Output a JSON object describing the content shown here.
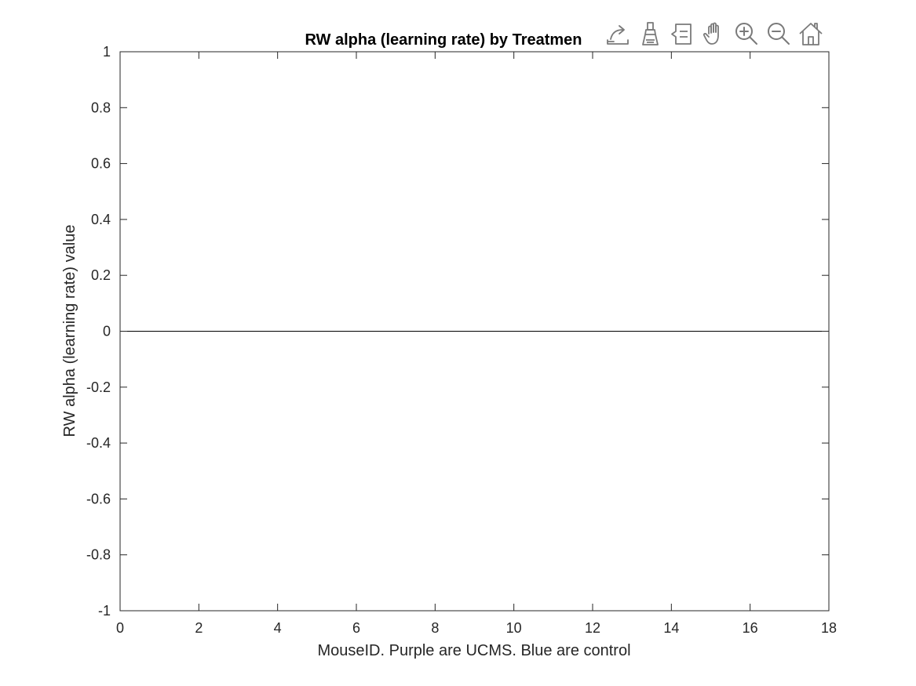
{
  "figure": {
    "toolbar": {
      "icons": [
        "export-icon",
        "brush-icon",
        "legend-icon",
        "pan-hand-icon",
        "zoom-in-icon",
        "zoom-out-icon",
        "home-icon"
      ]
    },
    "colors": {
      "axis": "#262626",
      "data_line": "#000000",
      "toolbar_icon": "#7a7a7a",
      "background": "#ffffff"
    }
  },
  "chart_data": {
    "type": "line",
    "title": "RW alpha (learning rate) by Treatmen",
    "xlabel": "MouseID. Purple are UCMS. Blue are control",
    "ylabel": "RW alpha (learning rate) value",
    "xlim": [
      0,
      18
    ],
    "ylim": [
      -1,
      1
    ],
    "xticks": [
      0,
      2,
      4,
      6,
      8,
      10,
      12,
      14,
      16,
      18
    ],
    "yticks": [
      -1,
      -0.8,
      -0.6,
      -0.4,
      -0.2,
      0,
      0.2,
      0.4,
      0.6,
      0.8,
      1
    ],
    "xtick_labels": [
      "0",
      "2",
      "4",
      "6",
      "8",
      "10",
      "12",
      "14",
      "16",
      "18"
    ],
    "ytick_labels": [
      "-1",
      "-0.8",
      "-0.6",
      "-0.4",
      "-0.2",
      "0",
      "0.2",
      "0.4",
      "0.6",
      "0.8",
      "1"
    ],
    "grid": false,
    "box": true,
    "series": [
      {
        "x": [
          0,
          18
        ],
        "y": [
          0,
          0
        ],
        "color": "#000000"
      }
    ]
  }
}
